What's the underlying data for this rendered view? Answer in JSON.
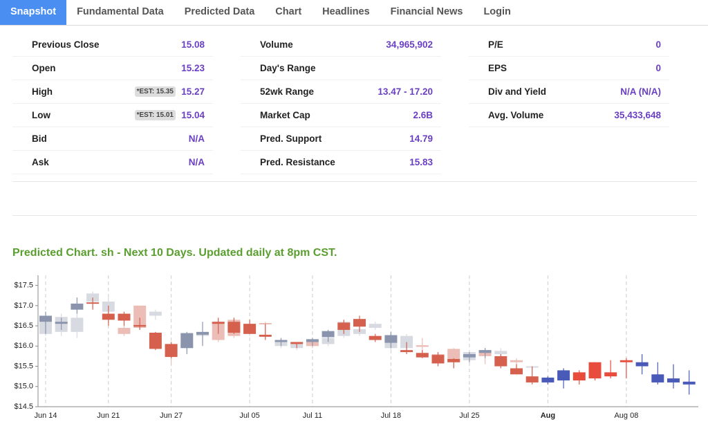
{
  "nav": {
    "tabs": [
      "Snapshot",
      "Fundamental Data",
      "Predicted Data",
      "Chart",
      "Headlines",
      "Financial News",
      "Login"
    ]
  },
  "stats": {
    "columns": [
      {
        "rows": [
          {
            "label": "Previous Close",
            "value": "15.08"
          },
          {
            "label": "Open",
            "value": "15.23"
          },
          {
            "label": "High",
            "est": "*EST: 15.35",
            "value": "15.27"
          },
          {
            "label": "Low",
            "est": "*EST: 15.01",
            "value": "15.04"
          },
          {
            "label": "Bid",
            "value": "N/A"
          },
          {
            "label": "Ask",
            "value": "N/A"
          }
        ]
      },
      {
        "rows": [
          {
            "label": "Volume",
            "value": "34,965,902"
          },
          {
            "label": "Day's Range"
          },
          {
            "label": "52wk Range",
            "value": "13.47 - 17.20"
          },
          {
            "label": "Market Cap",
            "value": "2.6B"
          },
          {
            "label": "Pred. Support",
            "value": "14.79"
          },
          {
            "label": "Pred. Resistance",
            "value": "15.83"
          }
        ]
      },
      {
        "rows": [
          {
            "label": "P/E",
            "value": "0"
          },
          {
            "label": "EPS",
            "value": "0"
          },
          {
            "label": "Div and Yield",
            "value": "N/A (N/A)"
          },
          {
            "label": "Avg. Volume",
            "value": "35,433,648"
          }
        ]
      }
    ]
  },
  "chart_data": {
    "type": "candlestick",
    "title": "Predicted Chart. sh - Next 10 Days. Updated daily at 8pm CST.",
    "categories": [
      "Jun 14",
      null,
      null,
      null,
      "Jun 21",
      null,
      null,
      null,
      "Jun 27",
      null,
      null,
      null,
      null,
      "Jul 05",
      null,
      null,
      null,
      "Jul 11",
      null,
      null,
      null,
      null,
      "Jul 18",
      null,
      null,
      null,
      null,
      "Jul 25",
      null,
      null,
      null,
      null,
      "Aug",
      null,
      null,
      null,
      null,
      "Aug 08",
      null,
      null,
      null,
      null
    ],
    "ylim": [
      14.5,
      17.75
    ],
    "yticks": [
      {
        "value": 14.5,
        "label": "$14.5"
      },
      {
        "value": 15.0,
        "label": "$15.0"
      },
      {
        "value": 15.5,
        "label": "$15.5"
      },
      {
        "value": 16.0,
        "label": "$16.0"
      },
      {
        "value": 16.5,
        "label": "$16.5"
      },
      {
        "value": 17.0,
        "label": "$17.0"
      },
      {
        "value": 17.5,
        "label": "$17.5"
      }
    ],
    "grid": true,
    "series": [
      {
        "up_color": "#d8dae2",
        "down_color": "#ecbdb6",
        "start": 0,
        "open": [
          16.3,
          16.35,
          16.35,
          17.1,
          16.85,
          16.45,
          17.0,
          16.75,
          16.05,
          15.95,
          16.25,
          16.6,
          16.65,
          16.3,
          16.57,
          16.0,
          15.95,
          16.1,
          16.05,
          16.25,
          16.3,
          16.45,
          15.95,
          15.95,
          16.02,
          15.8,
          15.93,
          15.65,
          15.9,
          15.8,
          15.65,
          15.47
        ],
        "high": [
          16.75,
          16.8,
          16.8,
          17.35,
          17.2,
          16.5,
          17.0,
          16.9,
          16.1,
          16.1,
          16.3,
          16.65,
          16.7,
          16.6,
          16.6,
          16.2,
          16.1,
          16.15,
          16.3,
          16.65,
          16.5,
          16.6,
          16.25,
          16.3,
          16.2,
          15.85,
          15.95,
          15.9,
          15.95,
          15.95,
          15.7,
          15.5
        ],
        "low": [
          16.25,
          16.25,
          16.2,
          16.95,
          16.6,
          16.25,
          16.4,
          16.65,
          15.55,
          15.9,
          16.1,
          16.1,
          16.2,
          16.25,
          16.2,
          15.95,
          15.9,
          15.95,
          16.0,
          16.2,
          16.25,
          16.4,
          15.9,
          15.85,
          15.75,
          15.55,
          15.45,
          15.6,
          15.55,
          15.5,
          15.3,
          15.3
        ],
        "close": [
          16.6,
          16.72,
          16.7,
          17.3,
          17.1,
          16.3,
          16.45,
          16.85,
          15.75,
          16.05,
          16.3,
          16.15,
          16.25,
          16.55,
          16.55,
          16.15,
          16.05,
          16.0,
          16.2,
          16.6,
          16.42,
          16.55,
          16.2,
          16.25,
          15.98,
          15.7,
          15.6,
          15.85,
          15.75,
          15.88,
          15.6,
          15.5
        ]
      },
      {
        "up_color": "#8a95ad",
        "down_color": "#d4604d",
        "start": 0,
        "open": [
          16.6,
          16.55,
          16.9,
          17.08,
          16.8,
          16.8,
          16.52,
          16.33,
          16.05,
          15.95,
          16.28,
          16.6,
          16.6,
          16.55,
          16.28,
          16.1,
          16.1,
          16.1,
          16.22,
          16.58,
          16.67,
          16.25,
          16.08,
          15.9,
          15.83,
          15.78,
          15.68,
          15.72,
          15.83,
          15.75,
          15.45,
          15.25
        ],
        "high": [
          16.85,
          16.7,
          17.2,
          17.2,
          17.0,
          16.85,
          16.7,
          16.35,
          16.1,
          16.35,
          16.6,
          16.7,
          16.7,
          16.65,
          16.55,
          16.2,
          16.1,
          16.2,
          16.4,
          16.65,
          16.75,
          16.3,
          16.35,
          16.1,
          15.9,
          15.85,
          15.7,
          15.85,
          15.95,
          15.8,
          15.55,
          15.5
        ],
        "low": [
          16.3,
          16.4,
          16.8,
          16.9,
          16.5,
          16.5,
          16.4,
          15.9,
          15.7,
          15.8,
          16.0,
          16.3,
          16.3,
          16.3,
          16.15,
          16.0,
          15.95,
          16.0,
          16.1,
          16.3,
          16.35,
          16.1,
          15.95,
          15.8,
          15.7,
          15.5,
          15.45,
          15.6,
          15.7,
          15.45,
          15.3,
          15.05
        ],
        "close": [
          16.75,
          16.6,
          17.05,
          17.05,
          16.65,
          16.63,
          16.48,
          15.93,
          15.73,
          16.32,
          16.35,
          16.55,
          16.33,
          16.3,
          16.23,
          16.15,
          16.05,
          16.17,
          16.37,
          16.4,
          16.48,
          16.15,
          16.27,
          15.85,
          15.72,
          15.57,
          15.6,
          15.8,
          15.9,
          15.5,
          15.3,
          15.1
        ]
      },
      {
        "up_color": "#e84c3d",
        "down_color": "#4a5ab8",
        "start": 32,
        "open": [
          15.22,
          15.4,
          15.15,
          15.2,
          15.25,
          15.6,
          15.6,
          15.3,
          15.2,
          15.12
        ],
        "high": [
          15.25,
          15.45,
          15.4,
          15.6,
          15.65,
          15.7,
          15.8,
          15.6,
          15.55,
          15.4
        ],
        "low": [
          15.05,
          14.95,
          15.05,
          15.15,
          15.2,
          15.2,
          15.3,
          15.05,
          14.95,
          14.8
        ],
        "close": [
          15.1,
          15.15,
          15.35,
          15.6,
          15.35,
          15.65,
          15.5,
          15.1,
          15.1,
          15.05
        ]
      }
    ]
  }
}
